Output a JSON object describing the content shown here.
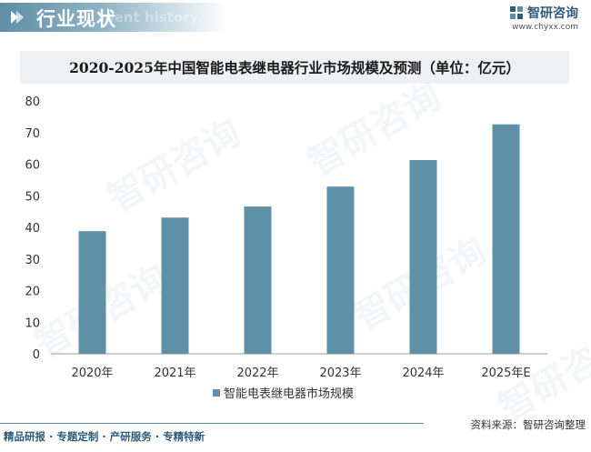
{
  "header": {
    "title": "行业现状",
    "subtitle": "ment history",
    "brand_name": "智研咨询",
    "brand_url": "www.chyxx.com"
  },
  "watermark_text": "智研咨询",
  "chart_data": {
    "type": "bar",
    "title": "2020-2025年中国智能电表继电器行业市场规模及预测（单位：亿元）",
    "categories": [
      "2020年",
      "2021年",
      "2022年",
      "2023年",
      "2024年",
      "2025年E"
    ],
    "series": [
      {
        "name": "智能电表继电器市场规模",
        "values": [
          38.8,
          43.1,
          46.6,
          52.9,
          61.3,
          72.6
        ]
      }
    ],
    "xlabel": "",
    "ylabel": "",
    "ylim": [
      0,
      80
    ],
    "yticks": [
      0,
      10,
      20,
      30,
      40,
      50,
      60,
      70,
      80
    ],
    "grid": false,
    "legend_position": "bottom",
    "bar_color": "#5e91a8"
  },
  "footer": {
    "left": "精品研报 · 专题定制 · 产研服务 · 专精特新",
    "right": "资料来源：智研咨询整理"
  },
  "colors": {
    "accent": "#5e8ea6",
    "bar": "#5e91a8",
    "axis": "#333333"
  }
}
